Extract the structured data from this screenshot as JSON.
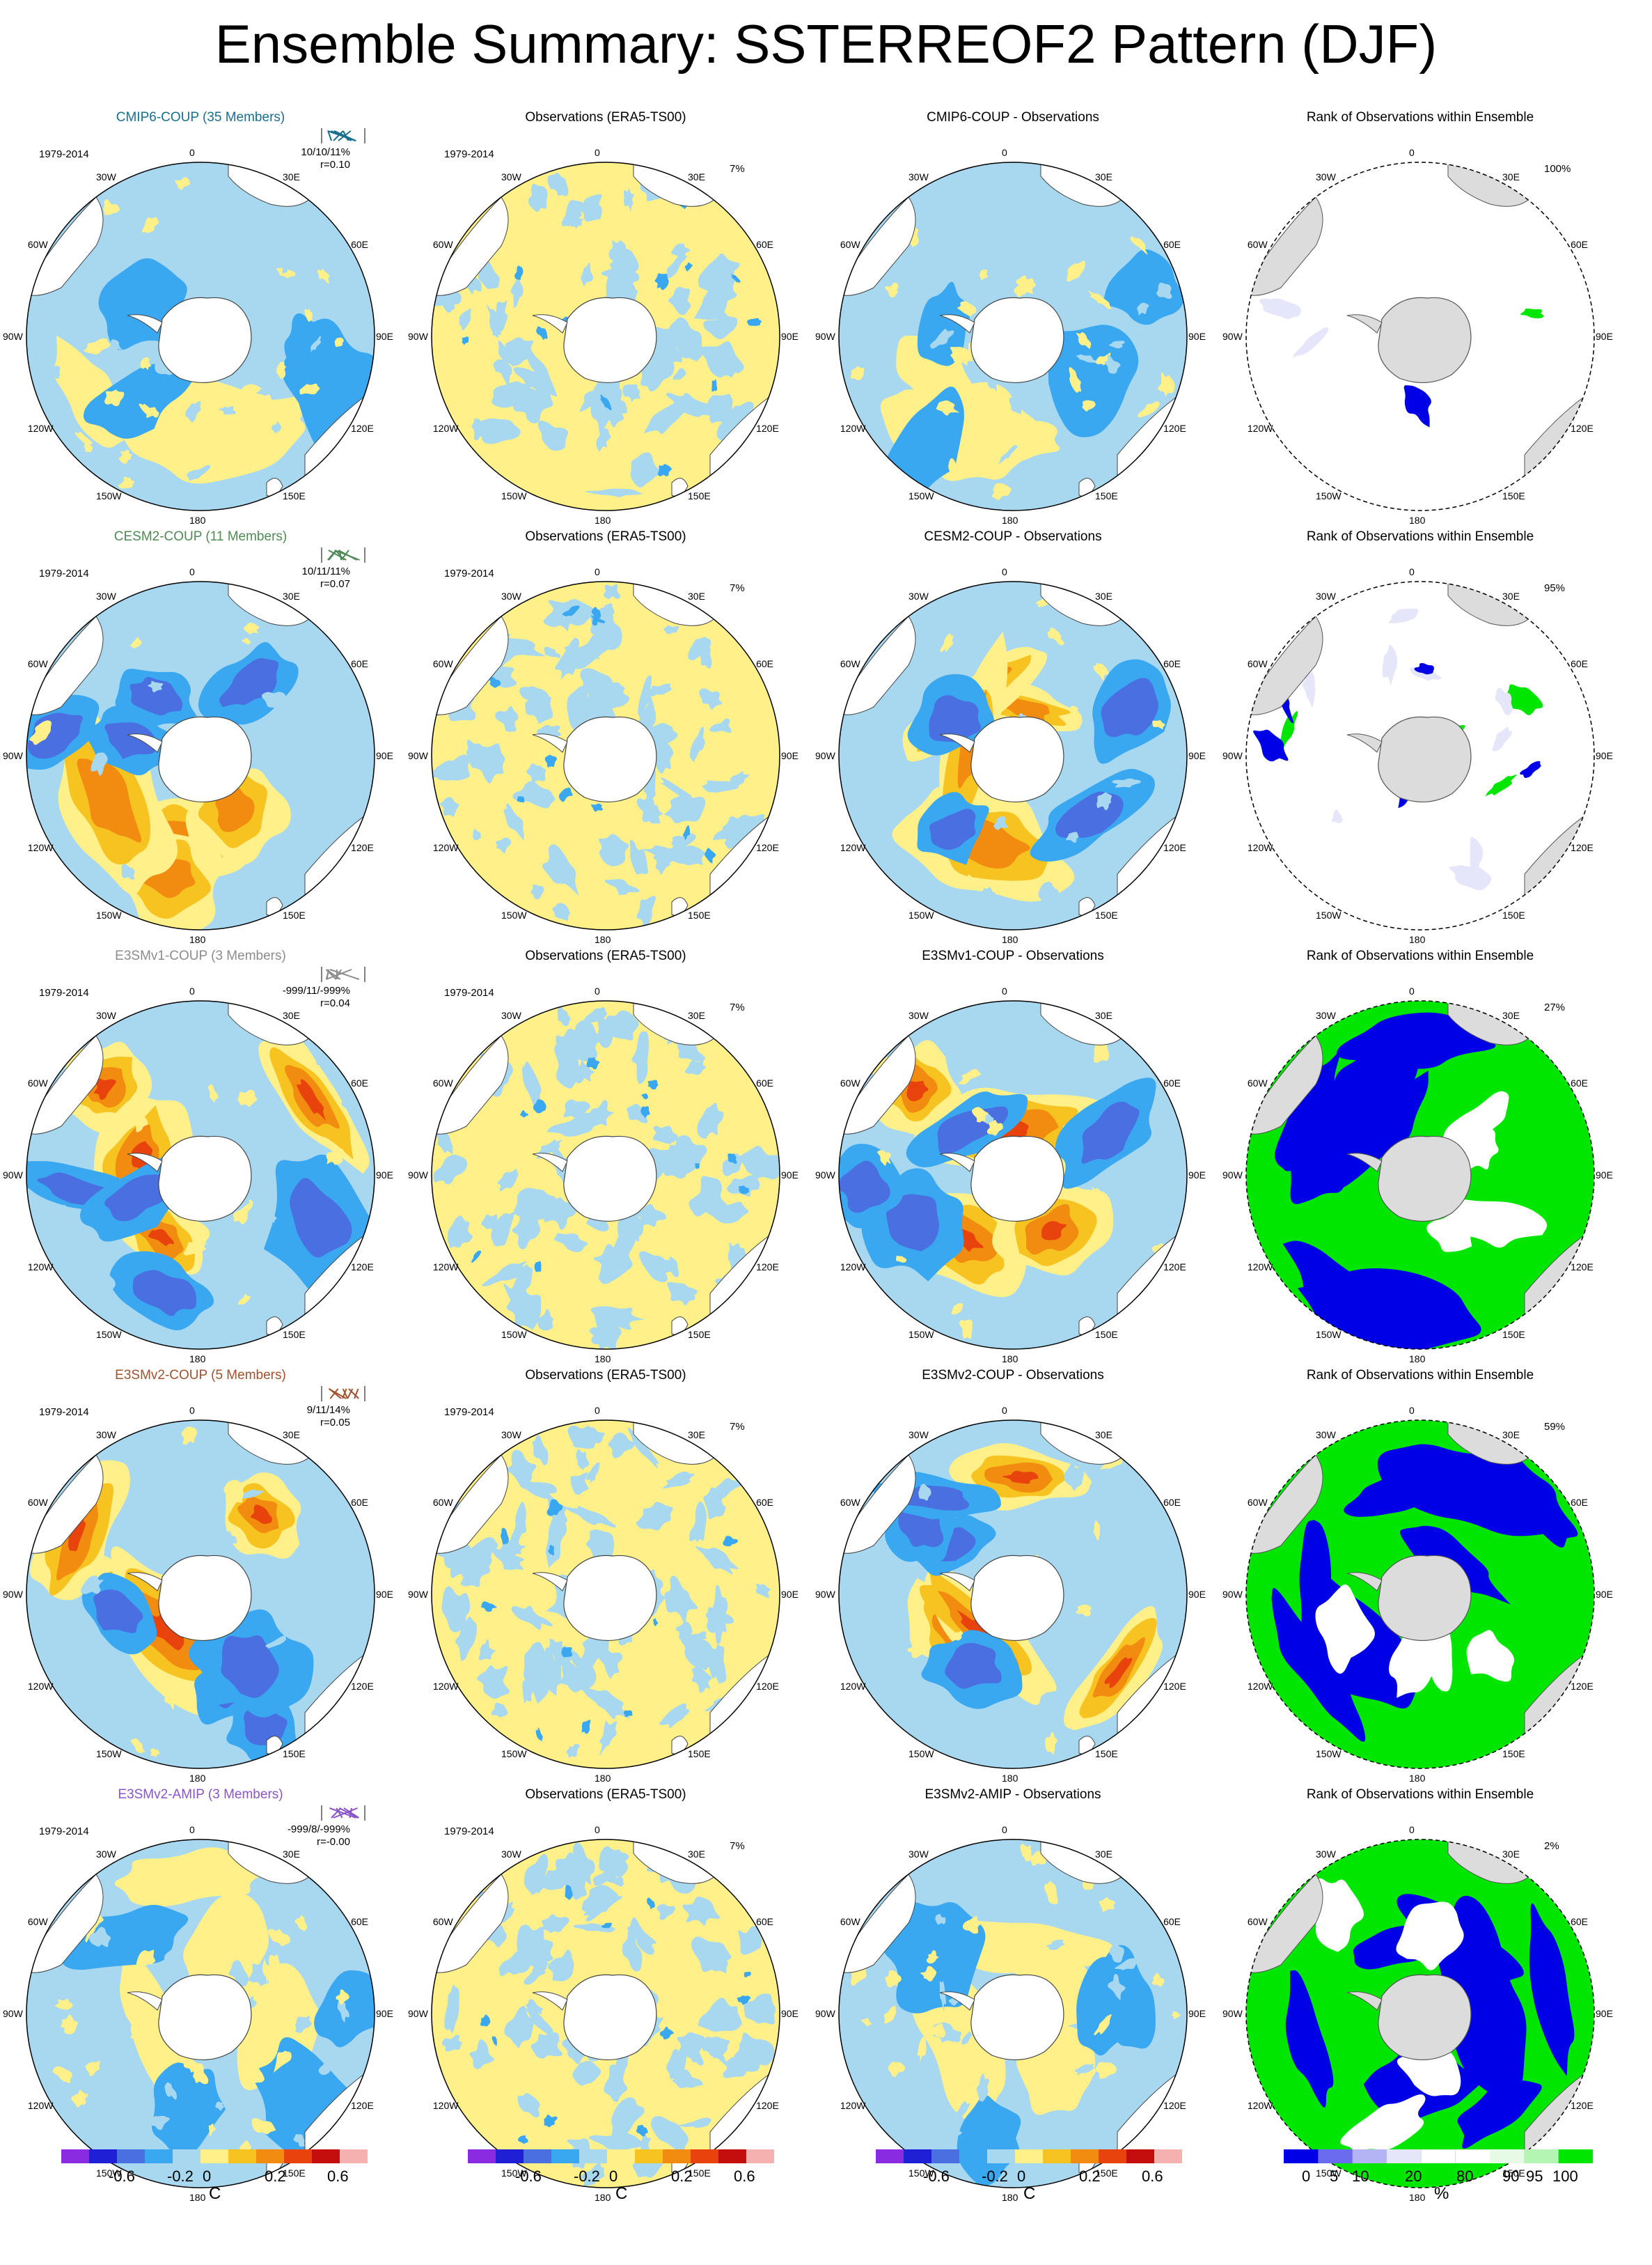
{
  "title": "Ensemble Summary: SSTERREOF2 Pattern (DJF)",
  "lon_labels": [
    "0",
    "30E",
    "60E",
    "90E",
    "120E",
    "150E",
    "180",
    "150W",
    "120W",
    "90W",
    "60W",
    "30W"
  ],
  "rows": [
    {
      "model_title": "CMIP6-COUP (35 Members)",
      "model_color": "#1a6e8e",
      "period": "1979-2014",
      "stats_line1": "10/10/11%",
      "stats_line2": "r=0.10",
      "obs_title": "Observations (ERA5-TS00)",
      "obs_pct": "7%",
      "diff_title": "CMIP6-COUP - Observations",
      "rank_title": "Rank of Observations within Ensemble",
      "rank_pct": "100%",
      "intensity": 0.55
    },
    {
      "model_title": "CESM2-COUP (11 Members)",
      "model_color": "#4f8a55",
      "period": "1979-2014",
      "stats_line1": "10/11/11%",
      "stats_line2": "r=0.07",
      "obs_title": "Observations (ERA5-TS00)",
      "obs_pct": "7%",
      "diff_title": "CESM2-COUP - Observations",
      "rank_title": "Rank of Observations within Ensemble",
      "rank_pct": "95%",
      "intensity": 0.9
    },
    {
      "model_title": "E3SMv1-COUP (3 Members)",
      "model_color": "#8c8c8c",
      "period": "1979-2014",
      "stats_line1": "-999/11/-999%",
      "stats_line2": "r=0.04",
      "obs_title": "Observations (ERA5-TS00)",
      "obs_pct": "7%",
      "diff_title": "E3SMv1-COUP - Observations",
      "rank_title": "Rank of Observations within Ensemble",
      "rank_pct": "27%",
      "intensity": 1.0
    },
    {
      "model_title": "E3SMv2-COUP (5 Members)",
      "model_color": "#a0522d",
      "period": "1979-2014",
      "stats_line1": "9/11/14%",
      "stats_line2": "r=0.05",
      "obs_title": "Observations (ERA5-TS00)",
      "obs_pct": "7%",
      "diff_title": "E3SMv2-COUP - Observations",
      "rank_title": "Rank of Observations within Ensemble",
      "rank_pct": "59%",
      "intensity": 1.0
    },
    {
      "model_title": "E3SMv2-AMIP (3 Members)",
      "model_color": "#8a55c8",
      "period": "1979-2014",
      "stats_line1": "-999/8/-999%",
      "stats_line2": "r=-0.00",
      "obs_title": "Observations (ERA5-TS00)",
      "obs_pct": "7%",
      "diff_title": "E3SMv2-AMIP - Observations",
      "rank_title": "Rank of Observations within Ensemble",
      "rank_pct": "2%",
      "intensity": 0.6
    }
  ],
  "colorbar_sst": {
    "colors": [
      "#8a2be2",
      "#1f1fd6",
      "#4a6fe0",
      "#3aa8f0",
      "#a8d8f0",
      "#fff08a",
      "#f7c320",
      "#f28c10",
      "#e8430c",
      "#c40d0d",
      "#f5b0b0"
    ],
    "labels": [
      "-0.6",
      "-0.2",
      "0",
      "0.2",
      "0.6"
    ],
    "unit": "C"
  },
  "colorbar_rank": {
    "colors": [
      "#0000e6",
      "#6b6bf0",
      "#b4b4f5",
      "#e6e6fa",
      "#ffffff",
      "#ffffff",
      "#e6fae6",
      "#b4f5b4",
      "#00e600"
    ],
    "labels": [
      "0",
      "5",
      "10",
      "20",
      "80",
      "90",
      "95",
      "100"
    ],
    "unit": "%"
  }
}
